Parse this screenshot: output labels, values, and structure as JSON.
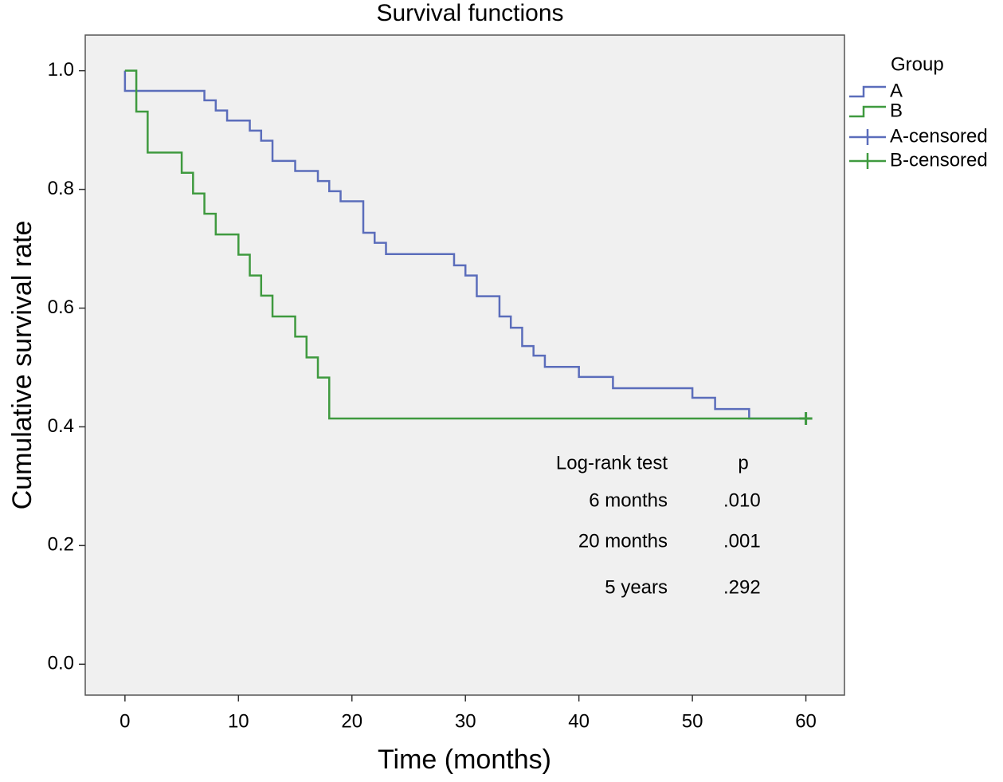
{
  "chart_data": {
    "type": "step",
    "title": "Survival functions",
    "x_label": "Time (months)",
    "y_label": "Cumulative survival rate",
    "legend_title": "Group",
    "xlim": [
      -3.5,
      63.4
    ],
    "ylim": [
      -0.052,
      1.06
    ],
    "xticks": [
      0,
      10,
      20,
      30,
      40,
      50,
      60
    ],
    "yticks": [
      {
        "value": 0,
        "label": "0.0"
      },
      0.2,
      0.4,
      0.6,
      0.8,
      {
        "value": 1,
        "label": "1.0"
      }
    ],
    "series": [
      {
        "name": "A",
        "color": "#5b6dbb",
        "x": [
          0,
          0,
          7,
          8,
          9,
          11,
          12,
          13,
          15,
          17,
          18,
          19,
          21,
          22,
          23,
          29,
          30,
          31,
          33,
          34,
          35,
          36,
          37,
          40,
          43,
          50,
          52,
          55,
          60
        ],
        "values": [
          1.0,
          0.966,
          0.95,
          0.933,
          0.916,
          0.899,
          0.882,
          0.848,
          0.831,
          0.814,
          0.797,
          0.78,
          0.727,
          0.71,
          0.691,
          0.672,
          0.655,
          0.62,
          0.586,
          0.567,
          0.536,
          0.52,
          0.501,
          0.484,
          0.465,
          0.449,
          0.43,
          0.414,
          0.414
        ]
      },
      {
        "name": "B",
        "color": "#3f9a3f",
        "x": [
          0,
          1,
          2,
          5,
          6,
          7,
          8,
          10,
          11,
          12,
          13,
          15,
          16,
          17,
          18,
          60
        ],
        "values": [
          1.0,
          0.931,
          0.862,
          0.828,
          0.793,
          0.759,
          0.724,
          0.69,
          0.655,
          0.621,
          0.586,
          0.552,
          0.517,
          0.483,
          0.414,
          0.414
        ]
      },
      {
        "name": "A-censored",
        "color": "#5b6dbb",
        "censored": true,
        "x": [
          60
        ],
        "values": [
          0.414
        ]
      },
      {
        "name": "B-censored",
        "color": "#3f9a3f",
        "censored": true,
        "x": [
          60
        ],
        "values": [
          0.414
        ]
      }
    ],
    "annotation_table": {
      "header": [
        "Log-rank test",
        "p"
      ],
      "rows": [
        [
          "6 months",
          ".010"
        ],
        [
          "20 months",
          ".001"
        ],
        [
          "5 years",
          ".292"
        ]
      ]
    }
  }
}
